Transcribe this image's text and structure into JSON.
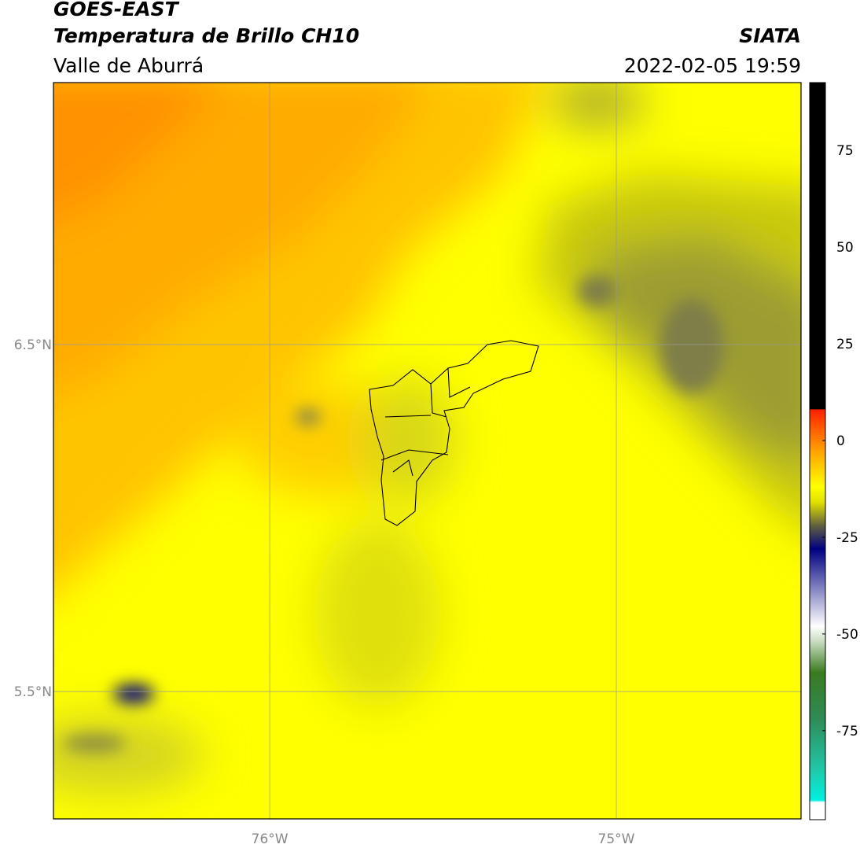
{
  "header": {
    "title": "GOES-EAST",
    "subtitle": "Temperatura de Brillo CH10",
    "region": "Valle de Aburrá",
    "source": "SIATA",
    "datetime": "2022-02-05 19:59"
  },
  "map": {
    "lonlim": [
      -76.624,
      -74.467
    ],
    "latlim": [
      5.133,
      7.255
    ],
    "lonticks": [
      {
        "value": -76,
        "label": "76°W"
      },
      {
        "value": -75,
        "label": "75°W"
      }
    ],
    "latticks": [
      {
        "value": 6.5,
        "label": "6.5°N"
      },
      {
        "value": 5.5,
        "label": "5.5°N"
      }
    ],
    "grid": true
  },
  "colorbar": {
    "range": [
      -98,
      92.5
    ],
    "ticks": [
      75,
      50,
      25,
      0,
      -25,
      -50,
      -75
    ],
    "stops": [
      {
        "value": -98,
        "color": "#ffffff"
      },
      {
        "value": -93.5,
        "color": "#ffffff"
      },
      {
        "value": -93,
        "color": "#00f0e0"
      },
      {
        "value": -85,
        "color": "#20c8a8"
      },
      {
        "value": -72,
        "color": "#2e8b57"
      },
      {
        "value": -60,
        "color": "#3a7a20"
      },
      {
        "value": -52,
        "color": "#c8dcc0"
      },
      {
        "value": -48,
        "color": "#ffffff"
      },
      {
        "value": -38,
        "color": "#8080c0"
      },
      {
        "value": -28,
        "color": "#000080"
      },
      {
        "value": -22,
        "color": "#606040"
      },
      {
        "value": -16,
        "color": "#e0e000"
      },
      {
        "value": -12,
        "color": "#ffff00"
      },
      {
        "value": -3,
        "color": "#ffa500"
      },
      {
        "value": 8,
        "color": "#ff2000"
      },
      {
        "value": 8.1,
        "color": "#000000"
      },
      {
        "value": 92.5,
        "color": "#000000"
      }
    ]
  }
}
